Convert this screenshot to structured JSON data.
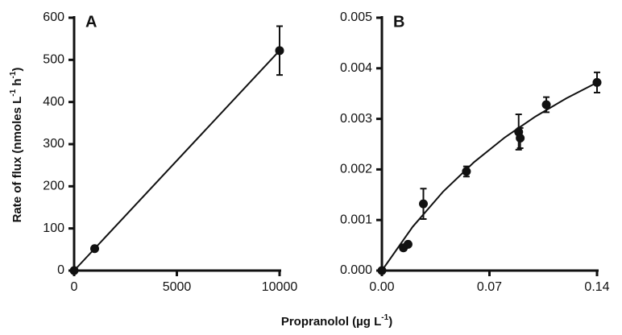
{
  "figure": {
    "y_label_parts": [
      "Rate of flux  (nmoles L",
      "-1",
      " h",
      "-1",
      ")"
    ],
    "x_label_parts": [
      "Propranolol (µg L",
      "-1",
      ")"
    ]
  },
  "chart_data": [
    {
      "type": "scatter",
      "panel": "A",
      "x": [
        0,
        1000,
        10000
      ],
      "values": [
        0,
        52,
        522
      ],
      "errors": [
        null,
        null,
        58
      ],
      "fit": {
        "x": [
          0,
          10000
        ],
        "values": [
          0,
          522
        ]
      },
      "xlim": [
        0,
        10000
      ],
      "xticks": [
        0,
        5000,
        10000
      ],
      "ylim": [
        0,
        600
      ],
      "yticks": [
        0,
        100,
        200,
        300,
        400,
        500,
        600
      ],
      "color": "#111111"
    },
    {
      "type": "scatter",
      "panel": "B",
      "x": [
        0,
        0.014,
        0.017,
        0.027,
        0.055,
        0.089,
        0.09,
        0.107,
        0.14
      ],
      "values": [
        0,
        0.00045,
        0.00052,
        0.00132,
        0.00196,
        0.00274,
        0.00262,
        0.00328,
        0.00372
      ],
      "errors": [
        null,
        5e-05,
        null,
        0.0003,
        0.0001,
        0.00035,
        0.0002,
        0.00015,
        0.0002
      ],
      "fit": {
        "x": [
          0,
          0.02,
          0.04,
          0.06,
          0.08,
          0.1,
          0.12,
          0.14
        ],
        "values": [
          0,
          0.000865,
          0.001566,
          0.002145,
          0.002633,
          0.003048,
          0.003406,
          0.003718
        ]
      },
      "xlim": [
        0,
        0.14
      ],
      "xticks": [
        {
          "value": 0,
          "label": "0.00"
        },
        {
          "value": 0.07,
          "label": "0.07"
        },
        {
          "value": 0.14,
          "label": "0.14"
        }
      ],
      "ylim": [
        0,
        0.005
      ],
      "yticks": [
        {
          "value": 0,
          "label": "0.000"
        },
        {
          "value": 0.001,
          "label": "0.001"
        },
        {
          "value": 0.002,
          "label": "0.002"
        },
        {
          "value": 0.003,
          "label": "0.003"
        },
        {
          "value": 0.004,
          "label": "0.004"
        },
        {
          "value": 0.005,
          "label": "0.005"
        }
      ],
      "color": "#111111"
    }
  ]
}
